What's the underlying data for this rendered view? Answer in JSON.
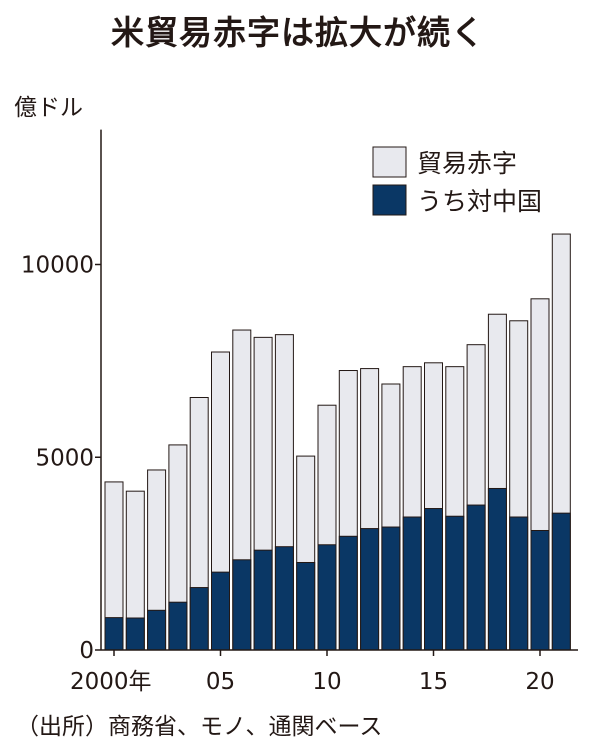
{
  "chart_data": {
    "type": "bar",
    "title": "米貿易赤字は拡大が続く",
    "unit": "億ドル",
    "source": "（出所）商務省、モノ、通関ベース",
    "x": [
      2000,
      2001,
      2002,
      2003,
      2004,
      2005,
      2006,
      2007,
      2008,
      2009,
      2010,
      2011,
      2012,
      2013,
      2014,
      2015,
      2016,
      2017,
      2018,
      2019,
      2020,
      2021
    ],
    "x_tick_labels": [
      {
        "x": 2000,
        "label": "2000年"
      },
      {
        "x": 2005,
        "label": "05"
      },
      {
        "x": 2010,
        "label": "10"
      },
      {
        "x": 2015,
        "label": "15"
      },
      {
        "x": 2020,
        "label": "20"
      }
    ],
    "series": [
      {
        "name": "貿易赤字",
        "color": "#e8e9ee",
        "values": [
          4360,
          4120,
          4670,
          5320,
          6550,
          7730,
          8300,
          8110,
          8180,
          5030,
          6350,
          7250,
          7300,
          6900,
          7350,
          7450,
          7350,
          7920,
          8710,
          8540,
          9110,
          10790
        ]
      },
      {
        "name": "うち対中国",
        "color": "#0a3765",
        "values": [
          840,
          830,
          1030,
          1240,
          1620,
          2020,
          2340,
          2590,
          2680,
          2270,
          2730,
          2950,
          3150,
          3190,
          3450,
          3670,
          3470,
          3760,
          4190,
          3450,
          3100,
          3550
        ]
      }
    ],
    "ylim": [
      0,
      13500
    ],
    "y_ticks": [
      {
        "value": 0,
        "label": "0"
      },
      {
        "value": 5000,
        "label": "5000"
      },
      {
        "value": 10000,
        "label": "10000"
      }
    ],
    "legend_position": "top-right",
    "grid": false
  }
}
